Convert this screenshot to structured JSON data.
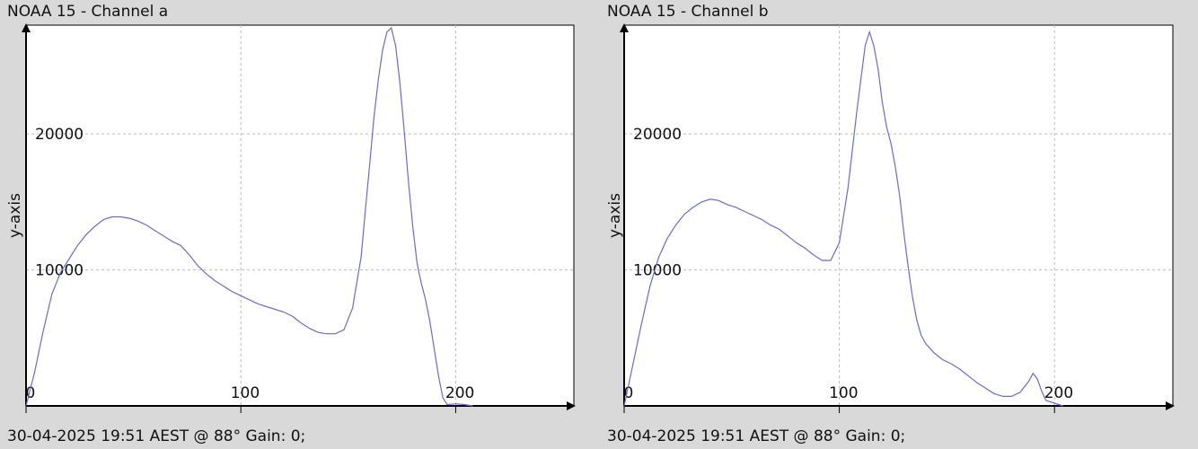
{
  "chart_data": [
    {
      "type": "line",
      "title": "NOAA 15 - Channel a",
      "footer": "30-04-2025 19:51 AEST @ 88° Gain: 0;",
      "ylabel": "y-axis",
      "xlabel": "",
      "xlim": [
        0,
        255
      ],
      "ylim": [
        0,
        28000
      ],
      "xticks": [
        0,
        100,
        200
      ],
      "yticks": [
        10000,
        20000
      ],
      "grid": true,
      "line_color": "#6a6add",
      "series": [
        {
          "x": [
            0,
            4,
            8,
            12,
            16,
            20,
            24,
            28,
            32,
            36,
            40,
            44,
            48,
            52,
            56,
            60,
            64,
            68,
            72,
            76,
            80,
            84,
            88,
            92,
            96,
            100,
            104,
            108,
            112,
            116,
            120,
            124,
            128,
            132,
            136,
            140,
            144,
            148,
            152,
            156,
            158,
            160,
            162,
            164,
            166,
            168,
            170,
            172,
            174,
            176,
            178,
            180,
            182,
            184,
            186,
            188,
            190,
            192,
            194,
            196,
            200,
            204,
            208
          ],
          "y": [
            0,
            2500,
            5500,
            8200,
            9800,
            10800,
            11800,
            12600,
            13200,
            13700,
            13900,
            13900,
            13800,
            13600,
            13300,
            12900,
            12500,
            12100,
            11800,
            11100,
            10300,
            9700,
            9200,
            8800,
            8400,
            8100,
            7800,
            7500,
            7300,
            7100,
            6900,
            6600,
            6100,
            5700,
            5400,
            5300,
            5300,
            5600,
            7200,
            11000,
            14500,
            17800,
            21300,
            24000,
            26200,
            27500,
            27800,
            26500,
            23800,
            20300,
            16500,
            13200,
            10500,
            9000,
            7800,
            6200,
            4200,
            2200,
            600,
            100,
            150,
            100,
            0
          ]
        }
      ]
    },
    {
      "type": "line",
      "title": "NOAA 15 - Channel b",
      "footer": "30-04-2025 19:51 AEST @ 88° Gain: 0;",
      "ylabel": "y-axis",
      "xlabel": "",
      "xlim": [
        0,
        255
      ],
      "ylim": [
        0,
        28000
      ],
      "xticks": [
        0,
        100,
        200
      ],
      "yticks": [
        10000,
        20000
      ],
      "grid": true,
      "line_color": "#6a6add",
      "series": [
        {
          "x": [
            0,
            4,
            8,
            12,
            16,
            20,
            24,
            28,
            32,
            36,
            40,
            44,
            48,
            52,
            56,
            60,
            64,
            68,
            72,
            76,
            80,
            84,
            88,
            92,
            96,
            100,
            104,
            108,
            110,
            112,
            114,
            116,
            118,
            120,
            122,
            124,
            126,
            128,
            130,
            132,
            134,
            136,
            138,
            140,
            144,
            148,
            152,
            156,
            160,
            164,
            168,
            172,
            176,
            180,
            184,
            188,
            190,
            192,
            194,
            196,
            200,
            204
          ],
          "y": [
            0,
            3000,
            6000,
            8800,
            10900,
            12300,
            13300,
            14100,
            14600,
            15000,
            15200,
            15100,
            14800,
            14600,
            14300,
            14000,
            13700,
            13300,
            13000,
            12500,
            12000,
            11600,
            11100,
            10700,
            10700,
            12000,
            16000,
            21500,
            24000,
            26500,
            27500,
            26500,
            24800,
            22300,
            20500,
            19300,
            17600,
            15500,
            12700,
            10200,
            8000,
            6300,
            5200,
            4600,
            3900,
            3400,
            3100,
            2700,
            2200,
            1700,
            1300,
            900,
            700,
            700,
            1000,
            1800,
            2400,
            2000,
            1100,
            400,
            200,
            0
          ]
        }
      ]
    }
  ]
}
